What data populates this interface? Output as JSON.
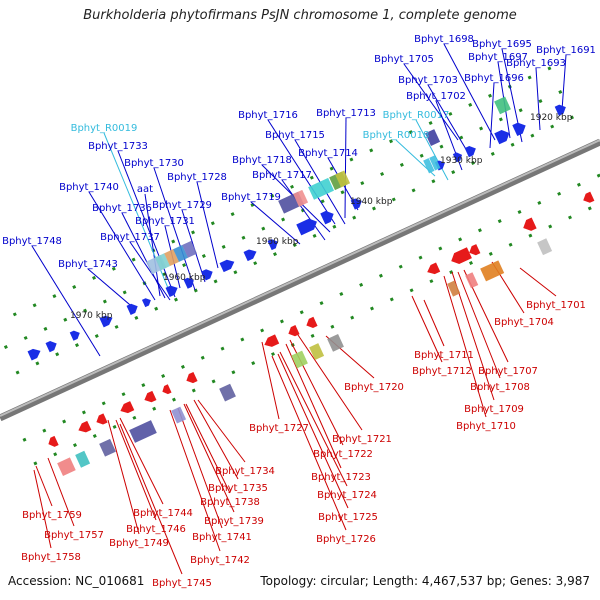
{
  "title": "Burkholderia phytofirmans PsJN chromosome 1, complete genome",
  "footer": {
    "accession": "Accession: NC_010681",
    "topology": "Topology: circular; Length: 4,467,537 bp; Genes: 3,987"
  },
  "colors": {
    "forward_label": "#0000cc",
    "reverse_label": "#cc0000",
    "rna_label": "#33bbdd",
    "backbone": "#888888",
    "forward_gene": "#1a2ee6",
    "reverse_gene": "#e61a1a",
    "tick": "#228822"
  },
  "scale_labels": [
    "1920 kbp",
    "1930 kbp",
    "1940 kbp",
    "1950 kbp",
    "1960 kbp",
    "1970 kbp"
  ],
  "labels_forward": [
    "Bphyt_1698",
    "Bphyt_1695",
    "Bphyt_1691",
    "Bphyt_1705",
    "Bphyt_1697",
    "Bphyt_1693",
    "Bphyt_1703",
    "Bphyt_1696",
    "Bphyt_1702",
    "Bphyt_1716",
    "Bphyt_1713",
    "Bphyt_1733",
    "Bphyt_1715",
    "Bphyt_1730",
    "Bphyt_1718",
    "Bphyt_1714",
    "Bphyt_1728",
    "Bphyt_1717",
    "Bphyt_1740",
    "aat",
    "Bphyt_1719",
    "Bphyt_1736",
    "Bphyt_1729",
    "Bphyt_1731",
    "Bphyt_1737",
    "Bphyt_1748",
    "Bphyt_1743"
  ],
  "labels_rna": [
    "Bphyt_R0019",
    "Bphyt_R0017",
    "Bphyt_R0018"
  ],
  "labels_reverse": [
    "Bphyt_1701",
    "Bphyt_1704",
    "Bphyt_1711",
    "Bphyt_1707",
    "Bphyt_1712",
    "Bphyt_1708",
    "Bphyt_1720",
    "Bphyt_1709",
    "Bphyt_1710",
    "Bphyt_1727",
    "Bphyt_1721",
    "Bphyt_1722",
    "Bphyt_1734",
    "Bphyt_1723",
    "Bphyt_1735",
    "Bphyt_1724",
    "Bphyt_1738",
    "Bphyt_1744",
    "Bphyt_1739",
    "Bphyt_1725",
    "Bphyt_1759",
    "Bphyt_1746",
    "Bphyt_1741",
    "Bphyt_1726",
    "Bphyt_1757",
    "Bphyt_1749",
    "Bphyt_1742",
    "Bphyt_1758",
    "Bphyt_1745"
  ]
}
